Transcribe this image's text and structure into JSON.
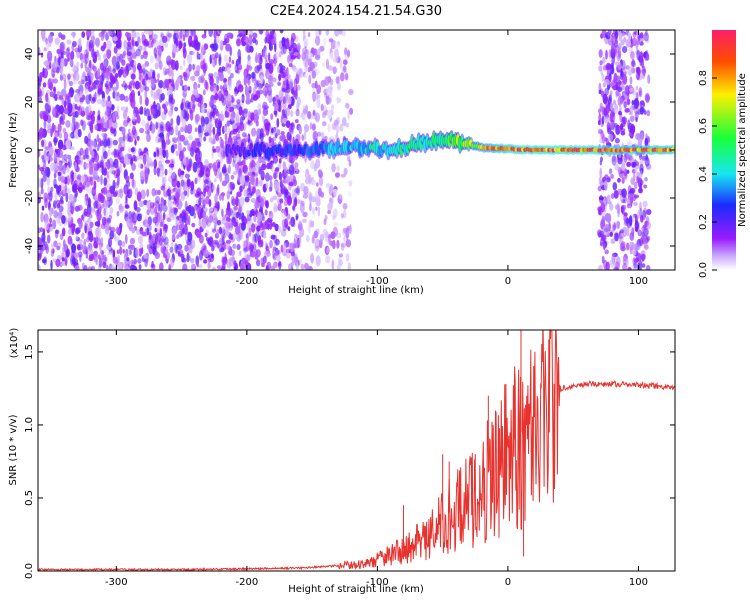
{
  "title": "C2E4.2024.154.21.54.G30",
  "chart_data": [
    {
      "type": "heatmap",
      "title": "C2E4.2024.154.21.54.G30",
      "xlabel": "Height of straight line (km)",
      "ylabel": "Frequency (Hz)",
      "xlim": [
        -360,
        128
      ],
      "ylim": [
        -50,
        50
      ],
      "x_ticks": [
        -300,
        -200,
        -100,
        0,
        100
      ],
      "y_ticks": [
        -40,
        -20,
        0,
        20,
        40
      ],
      "colorbar": {
        "label": "Normalized spectral amplitude",
        "range": [
          0,
          1
        ],
        "ticks": [
          "0.0",
          "0.2",
          "0.4",
          "0.6",
          "0.8"
        ],
        "colors": [
          "#ffffff",
          "#9a1cff",
          "#1b2bff",
          "#18e7f0",
          "#19ff3a",
          "#ffef00",
          "#ff4a00",
          "#ff1f6a"
        ]
      },
      "regions": [
        {
          "x": [
            -360,
            -160
          ],
          "freq": [
            -50,
            50
          ],
          "amplitude": 0.15,
          "note": "broadband noise"
        },
        {
          "x": [
            -160,
            -120
          ],
          "freq": [
            -50,
            50
          ],
          "amplitude": 0.08,
          "note": "weak broadband noise"
        },
        {
          "x": [
            70,
            108
          ],
          "freq": [
            -50,
            50
          ],
          "amplitude": 0.15,
          "note": "broadband noise"
        }
      ],
      "ridge": [
        {
          "x": -215,
          "freq": 0,
          "amplitude": 0.2
        },
        {
          "x": -150,
          "freq": 0,
          "amplitude": 0.3
        },
        {
          "x": -120,
          "freq": 1,
          "amplitude": 0.4
        },
        {
          "x": -90,
          "freq": 0,
          "amplitude": 0.45
        },
        {
          "x": -60,
          "freq": 4,
          "amplitude": 0.5
        },
        {
          "x": -40,
          "freq": 4,
          "amplitude": 0.6
        },
        {
          "x": -20,
          "freq": 1,
          "amplitude": 0.75
        },
        {
          "x": 0,
          "freq": 0.5,
          "amplitude": 0.85
        },
        {
          "x": 20,
          "freq": 0,
          "amplitude": 0.9
        },
        {
          "x": 70,
          "freq": 0,
          "amplitude": 0.9
        },
        {
          "x": 110,
          "freq": 0,
          "amplitude": 0.85
        },
        {
          "x": 128,
          "freq": 0,
          "amplitude": 0.85
        }
      ]
    },
    {
      "type": "line",
      "xlabel": "Height of straight line (km)",
      "ylabel": "SNR (10 * v/v)",
      "y_multiplier": "(x10⁴)",
      "xlim": [
        -360,
        128
      ],
      "ylim": [
        0,
        1.65
      ],
      "x_ticks": [
        -300,
        -200,
        -100,
        0,
        100
      ],
      "y_ticks": [
        0,
        0.5,
        1.0,
        1.5
      ],
      "y_tick_labels": [
        "0.0",
        "0.5",
        "1.0",
        "1.5"
      ],
      "series": [
        {
          "color": "#e8322e",
          "x": [
            -360,
            -300,
            -250,
            -200,
            -160,
            -140,
            -125,
            -110,
            -100,
            -90,
            -80,
            -70,
            -60,
            -50,
            -40,
            -30,
            -20,
            -10,
            0,
            5,
            10,
            15,
            20,
            30,
            40,
            50,
            60,
            70,
            80,
            90,
            100,
            110,
            120,
            128
          ],
          "values": [
            0.01,
            0.01,
            0.01,
            0.015,
            0.02,
            0.03,
            0.04,
            0.05,
            0.08,
            0.12,
            0.15,
            0.2,
            0.25,
            0.35,
            0.45,
            0.5,
            0.6,
            0.75,
            0.85,
            0.9,
            0.95,
            0.98,
            1.1,
            1.2,
            1.25,
            1.27,
            1.28,
            1.28,
            1.28,
            1.28,
            1.27,
            1.27,
            1.26,
            1.26
          ],
          "spikes": [
            {
              "x": -125,
              "y": 0.07
            },
            {
              "x": -80,
              "y": 0.45
            },
            {
              "x": -50,
              "y": 0.8
            },
            {
              "x": -45,
              "y": 0.75
            },
            {
              "x": -25,
              "y": 0.8
            },
            {
              "x": -15,
              "y": 1.2
            },
            {
              "x": 5,
              "y": 1.35
            },
            {
              "x": 10,
              "y": 1.65
            },
            {
              "x": 12,
              "y": 0.1
            }
          ]
        }
      ]
    }
  ]
}
